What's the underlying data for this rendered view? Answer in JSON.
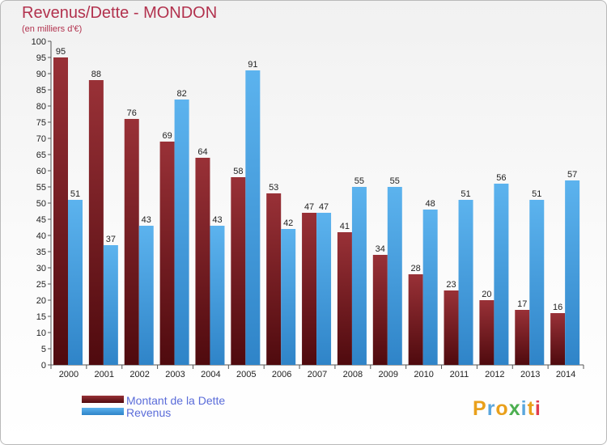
{
  "header": {
    "title": "Revenus/Dette - MONDON",
    "subtitle": "(en milliers d'€)"
  },
  "logo": {
    "text": "Proxiti",
    "letters": [
      "P",
      "r",
      "o",
      "x",
      "i",
      "t",
      "i"
    ],
    "letter_colors": [
      "#e9a01b",
      "#5aa6dd",
      "#e9a01b",
      "#4caf50",
      "#5aa6dd",
      "#e9a01b",
      "#e23c4f"
    ]
  },
  "colors": {
    "dette": "#7b1c22",
    "revenus": "#4ea3e3",
    "axis": "#555555",
    "grid": "#cccccc"
  },
  "chart_data": {
    "type": "bar",
    "title": "Revenus/Dette - MONDON",
    "subtitle": "(en milliers d'€)",
    "categories": [
      "2000",
      "2001",
      "2002",
      "2003",
      "2004",
      "2005",
      "2006",
      "2007",
      "2008",
      "2009",
      "2010",
      "2011",
      "2012",
      "2013",
      "2014"
    ],
    "series": [
      {
        "name": "Montant de la Dette",
        "values": [
          95,
          88,
          76,
          69,
          64,
          58,
          53,
          47,
          41,
          34,
          28,
          23,
          20,
          17,
          16
        ]
      },
      {
        "name": "Revenus",
        "values": [
          51,
          37,
          43,
          82,
          43,
          91,
          42,
          47,
          55,
          55,
          48,
          51,
          56,
          51,
          57
        ]
      }
    ],
    "ylim": [
      0,
      100
    ],
    "yticks": [
      0,
      5,
      10,
      15,
      20,
      25,
      30,
      35,
      40,
      45,
      50,
      55,
      60,
      65,
      70,
      75,
      80,
      85,
      90,
      95,
      100
    ],
    "grid": false,
    "legend": "bottom-left",
    "data_labels": true
  }
}
